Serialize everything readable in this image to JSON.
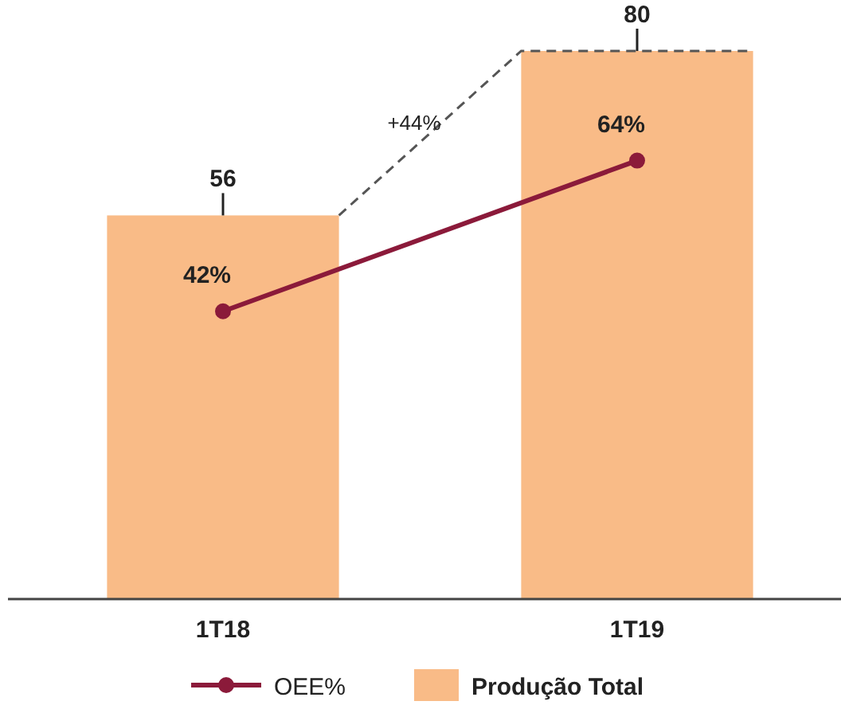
{
  "chart_data": {
    "type": "bar",
    "categories": [
      "1T18",
      "1T19"
    ],
    "series": [
      {
        "name": "Produção Total",
        "color": "#f9bb87",
        "values": [
          56,
          80
        ],
        "value_labels": [
          "56",
          "80"
        ]
      },
      {
        "name": "OEE%",
        "type": "line",
        "color": "#8b1a3a",
        "values": [
          42,
          64
        ],
        "value_labels": [
          "42%",
          "64%"
        ]
      }
    ],
    "tick_labels": "x",
    "grid": false,
    "legend": "bottom",
    "marker": "circle",
    "line_style": "solid",
    "annotations": [
      "+44%"
    ]
  }
}
